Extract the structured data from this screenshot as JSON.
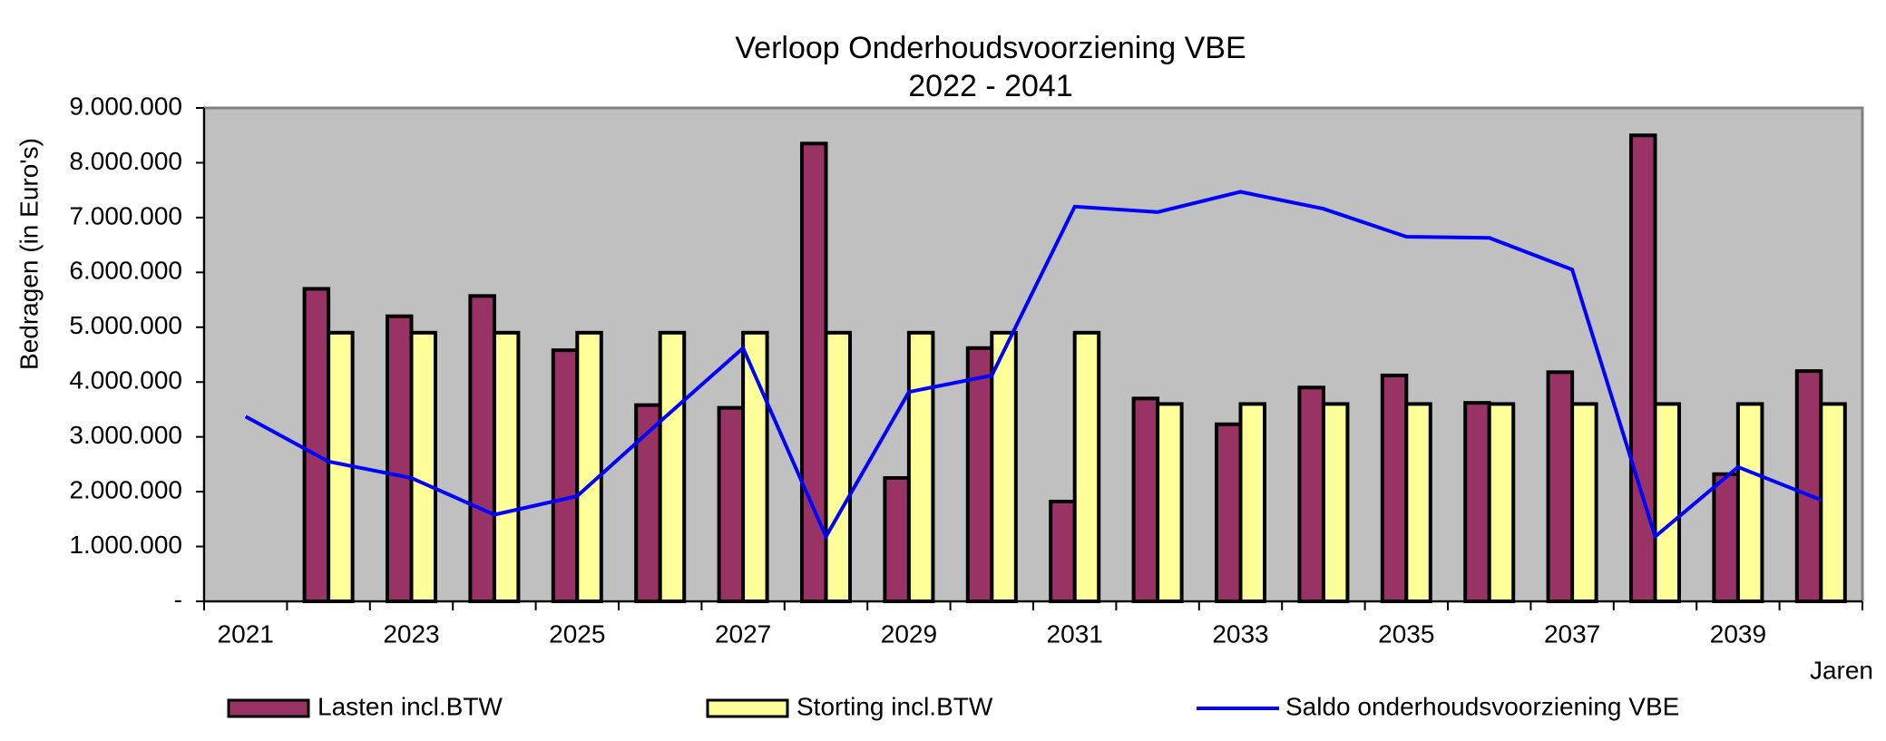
{
  "chart_data": {
    "type": "bar",
    "title": "Verloop Onderhoudsvoorziening VBE",
    "subtitle": "2022 - 2041",
    "y_label": "Bedragen  (in Euro's)",
    "x_label": "Jaren",
    "categories": [
      "2021",
      null,
      "2023",
      null,
      "2025",
      null,
      "2027",
      null,
      "2029",
      null,
      "2031",
      null,
      "2033",
      null,
      "2035",
      null,
      "2037",
      null,
      "2039",
      null
    ],
    "series": [
      {
        "name": "Lasten incl.BTW",
        "type": "bar",
        "color": "#993366",
        "values": [
          null,
          5700000,
          5200000,
          5570000,
          4580000,
          3580000,
          3530000,
          8350000,
          2250000,
          4620000,
          1820000,
          3700000,
          3230000,
          3900000,
          4120000,
          3620000,
          4180000,
          8500000,
          2320000,
          4200000
        ]
      },
      {
        "name": "Storting incl.BTW",
        "type": "bar",
        "color": "#ffff99",
        "values": [
          null,
          4900000,
          4900000,
          4900000,
          4900000,
          4900000,
          4900000,
          4900000,
          4900000,
          4900000,
          4900000,
          3600000,
          3600000,
          3600000,
          3600000,
          3600000,
          3600000,
          3600000,
          3600000,
          3600000
        ]
      },
      {
        "name": "Saldo onderhoudsvoorziening VBE",
        "type": "line",
        "color": "#0000ff",
        "values": [
          3370000,
          2550000,
          2250000,
          1580000,
          1920000,
          3280000,
          4620000,
          1180000,
          3820000,
          4120000,
          7200000,
          7100000,
          7470000,
          7160000,
          6650000,
          6630000,
          6050000,
          1180000,
          2450000,
          1850000
        ]
      }
    ],
    "ylim": [
      0,
      9000000
    ],
    "yticks": [
      {
        "value": 0,
        "label": "-"
      },
      {
        "value": 1000000,
        "label": "1.000.000"
      },
      {
        "value": 2000000,
        "label": "2.000.000"
      },
      {
        "value": 3000000,
        "label": "3.000.000"
      },
      {
        "value": 4000000,
        "label": "4.000.000"
      },
      {
        "value": 5000000,
        "label": "5.000.000"
      },
      {
        "value": 6000000,
        "label": "6.000.000"
      },
      {
        "value": 7000000,
        "label": "7.000.000"
      },
      {
        "value": 8000000,
        "label": "8.000.000"
      },
      {
        "value": 9000000,
        "label": "9.000.000"
      }
    ],
    "grid": false,
    "plot_background": "#c0c0c0",
    "legend": "bottom"
  }
}
